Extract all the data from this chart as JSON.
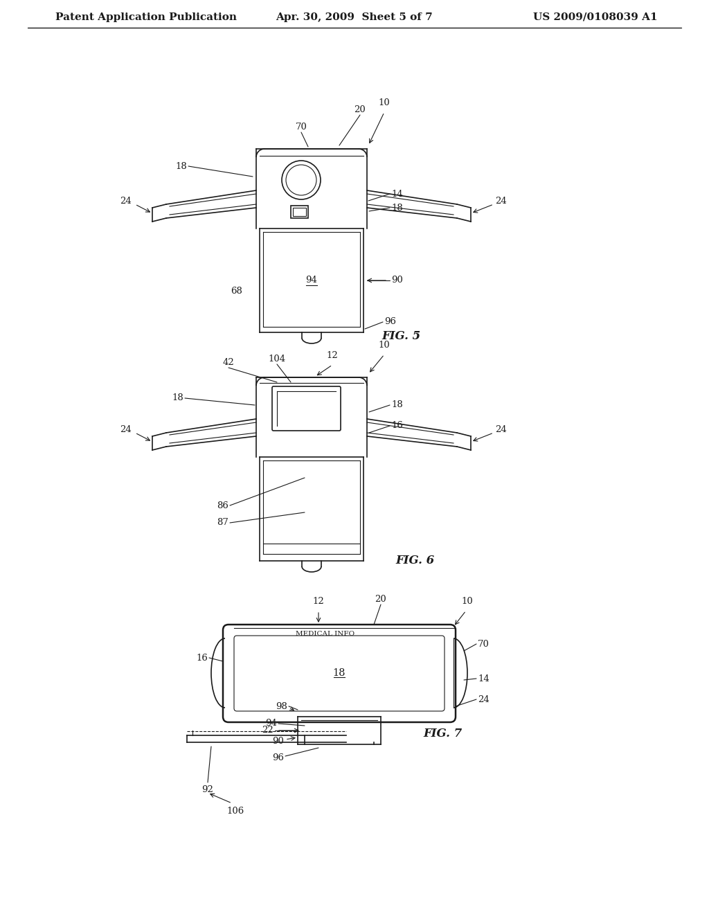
{
  "bg_color": "#ffffff",
  "line_color": "#1a1a1a",
  "header_left": "Patent Application Publication",
  "header_mid": "Apr. 30, 2009  Sheet 5 of 7",
  "header_right": "US 2009/0108039 A1",
  "fig5_label": "FIG. 5",
  "fig6_label": "FIG. 6",
  "fig7_label": "FIG. 7",
  "font_size_header": 11,
  "font_size_label": 11,
  "font_size_ref": 9.5
}
